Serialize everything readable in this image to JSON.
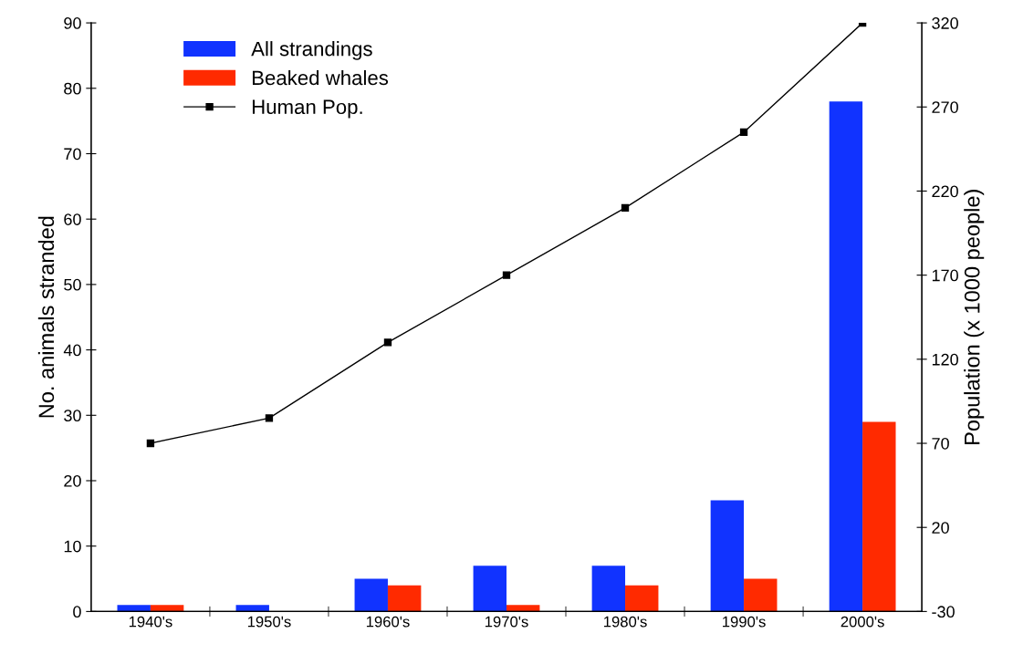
{
  "chart_data": {
    "type": "bar",
    "ylabel": "No. animals stranded",
    "y2label": "Population (x 1000 people)",
    "categories": [
      "1940's",
      "1950's",
      "1960's",
      "1970's",
      "1980's",
      "1990's",
      "2000's"
    ],
    "series": [
      {
        "name": "All strandings",
        "color": "#1133ff",
        "values": [
          1,
          1,
          5,
          7,
          7,
          17,
          78
        ]
      },
      {
        "name": "Beaked whales",
        "color": "#ff2a00",
        "values": [
          1,
          0,
          4,
          1,
          4,
          5,
          29
        ]
      },
      {
        "name": "Human Pop.",
        "type": "line",
        "axis": "y2",
        "color": "#000000",
        "marker": "square",
        "values": [
          70,
          85,
          130,
          170,
          210,
          255,
          320
        ]
      }
    ],
    "ylim": [
      0,
      90
    ],
    "yticks": [
      0,
      10,
      20,
      30,
      40,
      50,
      60,
      70,
      80,
      90
    ],
    "y2lim": [
      -30,
      320
    ],
    "y2ticks": [
      -30,
      20,
      70,
      120,
      170,
      220,
      270,
      320
    ],
    "grid": false,
    "legend": "top left"
  }
}
